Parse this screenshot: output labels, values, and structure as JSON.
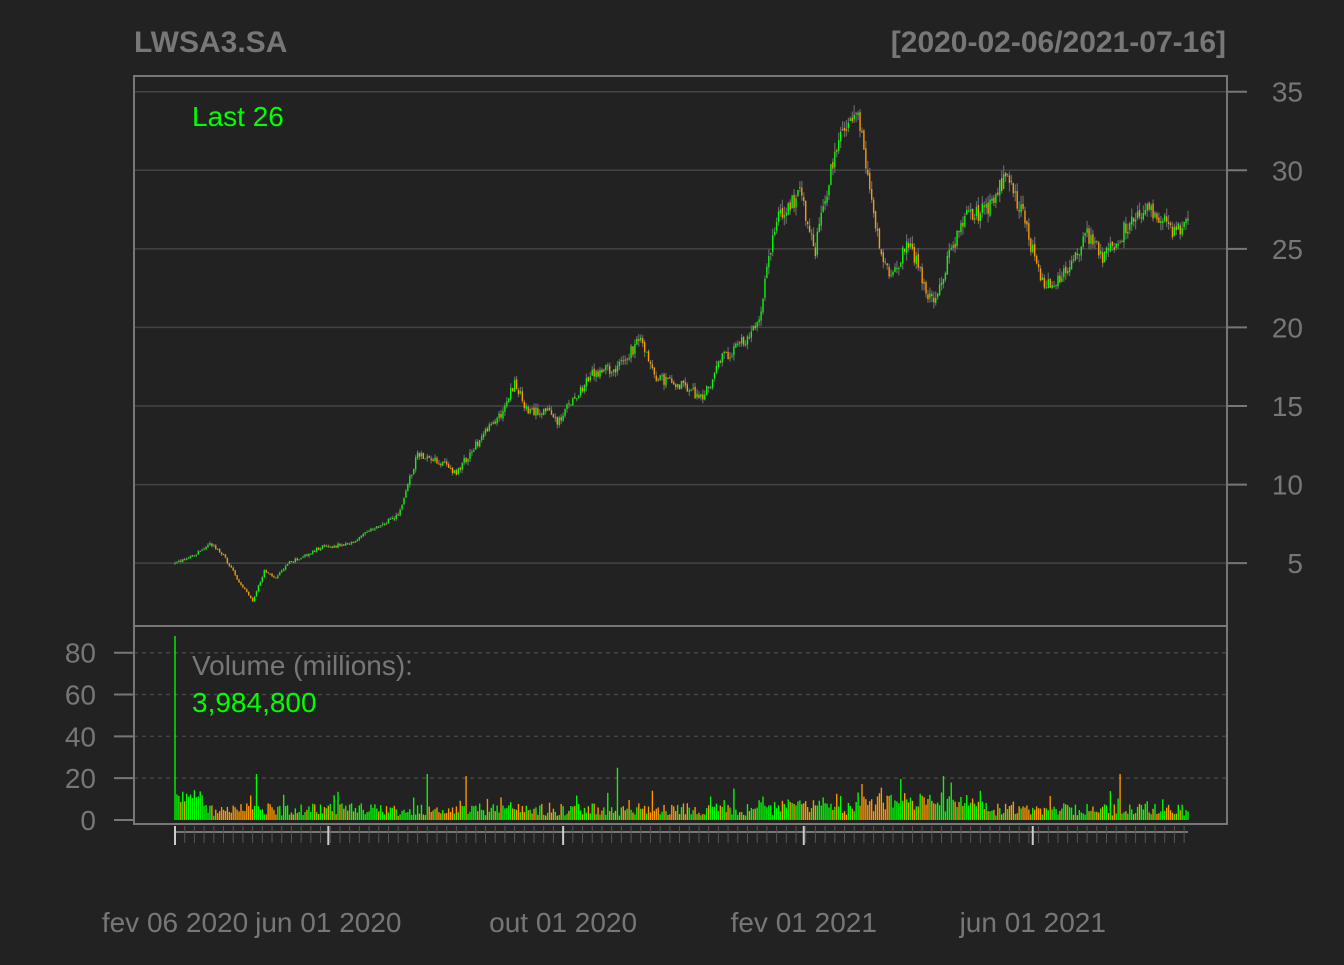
{
  "chart_data": {
    "type": "candlestick",
    "title": "LWSA3.SA",
    "date_range": "[2020-02-06/2021-07-16]",
    "last_label": "Last 26",
    "volume_label": "Volume (millions):",
    "volume_value": "3,984,800",
    "price_ticks": [
      "5",
      "10",
      "15",
      "20",
      "25",
      "30",
      "35"
    ],
    "volume_ticks": [
      "0",
      "20",
      "40",
      "60",
      "80"
    ],
    "x_labels": [
      "fev 06 2020",
      "jun 01 2020",
      "out 01 2020",
      "fev 01 2021",
      "jun 01 2021"
    ],
    "price_ylim": [
      1,
      36
    ],
    "volume_ylim": [
      0,
      88
    ],
    "grid": true,
    "colors": {
      "background": "#222222",
      "up": "#00ff00",
      "down": "#ff9900",
      "wick": "#666666",
      "axis": "#777777",
      "grid": "#444444",
      "text": "#777777",
      "highlight": "#00ff00"
    },
    "price_keypoints": [
      [
        0,
        5.0
      ],
      [
        10,
        5.5
      ],
      [
        18,
        6.2
      ],
      [
        25,
        5.5
      ],
      [
        33,
        3.8
      ],
      [
        40,
        2.6
      ],
      [
        46,
        4.5
      ],
      [
        52,
        4.0
      ],
      [
        58,
        5.0
      ],
      [
        68,
        5.5
      ],
      [
        75,
        6.0
      ],
      [
        90,
        6.2
      ],
      [
        100,
        7.0
      ],
      [
        115,
        8.0
      ],
      [
        125,
        12.0
      ],
      [
        135,
        11.5
      ],
      [
        145,
        10.8
      ],
      [
        158,
        13.0
      ],
      [
        168,
        14.5
      ],
      [
        175,
        16.5
      ],
      [
        182,
        14.5
      ],
      [
        190,
        14.8
      ],
      [
        198,
        14.0
      ],
      [
        205,
        15.5
      ],
      [
        215,
        17.0
      ],
      [
        228,
        17.5
      ],
      [
        240,
        19.2
      ],
      [
        248,
        16.8
      ],
      [
        258,
        16.5
      ],
      [
        272,
        15.5
      ],
      [
        282,
        18.0
      ],
      [
        300,
        20.0
      ],
      [
        310,
        27.0
      ],
      [
        322,
        28.5
      ],
      [
        330,
        25.0
      ],
      [
        340,
        31.0
      ],
      [
        350,
        34.0
      ],
      [
        355,
        31.5
      ],
      [
        362,
        26.0
      ],
      [
        368,
        23.0
      ],
      [
        378,
        25.5
      ],
      [
        388,
        22.0
      ],
      [
        392,
        21.5
      ],
      [
        400,
        25.0
      ],
      [
        408,
        27.0
      ],
      [
        418,
        27.5
      ],
      [
        428,
        29.5
      ],
      [
        436,
        27.5
      ],
      [
        446,
        23.0
      ],
      [
        452,
        22.5
      ],
      [
        462,
        24.0
      ],
      [
        470,
        26.0
      ],
      [
        478,
        24.5
      ],
      [
        488,
        26.0
      ],
      [
        498,
        27.5
      ],
      [
        506,
        27.3
      ],
      [
        514,
        26.0
      ],
      [
        522,
        26.5
      ]
    ],
    "spikes": [
      [
        0,
        88
      ],
      [
        42,
        22
      ],
      [
        130,
        22
      ],
      [
        150,
        21
      ],
      [
        228,
        25
      ],
      [
        396,
        21
      ],
      [
        487,
        22
      ]
    ],
    "n_days": 523
  }
}
